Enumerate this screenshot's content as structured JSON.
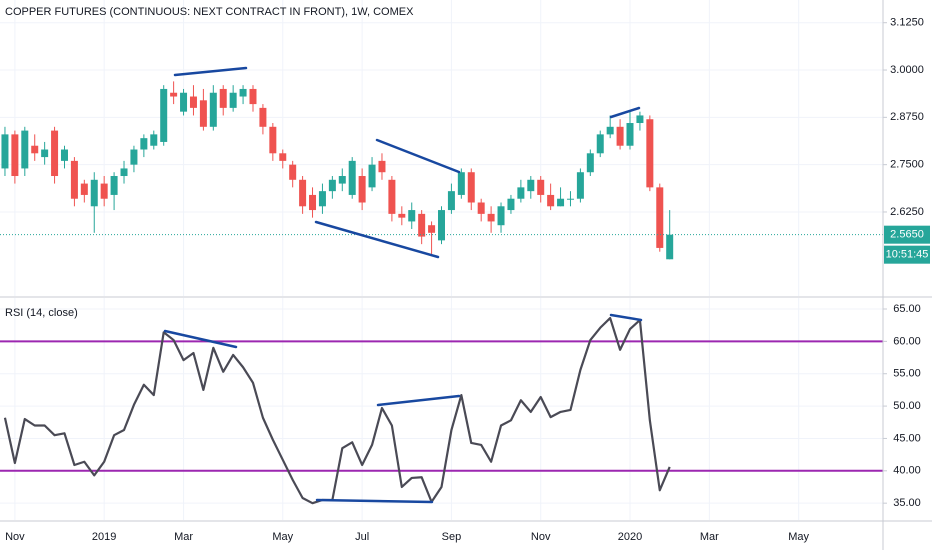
{
  "chart_data": [
    {
      "type": "candlestick",
      "title": "COPPER FUTURES (CONTINUOUS: NEXT CONTRACT IN FRONT), 1W, COMEX",
      "categories": [
        null,
        "Nov",
        null,
        null,
        null,
        null,
        null,
        null,
        null,
        null,
        "2019",
        null,
        null,
        null,
        null,
        null,
        null,
        null,
        "Mar",
        null,
        null,
        null,
        null,
        null,
        null,
        null,
        null,
        null,
        "May",
        null,
        null,
        null,
        null,
        null,
        null,
        null,
        "Jul",
        null,
        null,
        null,
        null,
        null,
        null,
        null,
        null,
        "Sep",
        null,
        null,
        null,
        null,
        null,
        null,
        null,
        null,
        "Nov",
        null,
        null,
        null,
        null,
        null,
        null,
        null,
        null,
        "2020",
        null,
        null,
        null,
        null,
        null,
        null,
        null,
        "Mar",
        null,
        null,
        null,
        null,
        null,
        null,
        null,
        null,
        "May",
        null,
        null,
        null,
        null,
        null,
        null,
        null,
        null
      ],
      "open": [
        2.74,
        2.83,
        2.74,
        2.8,
        2.77,
        2.84,
        2.76,
        2.76,
        2.7,
        2.64,
        2.7,
        2.67,
        2.72,
        2.75,
        2.79,
        2.8,
        2.81,
        2.94,
        2.89,
        2.93,
        2.92,
        2.85,
        2.95,
        2.9,
        2.93,
        2.95,
        2.9,
        2.85,
        2.78,
        2.75,
        2.71,
        2.67,
        2.64,
        2.68,
        2.7,
        2.67,
        2.72,
        2.69,
        2.76,
        2.71,
        2.62,
        2.6,
        2.62,
        2.59,
        2.55,
        2.63,
        2.67,
        2.73,
        2.65,
        2.62,
        2.59,
        2.63,
        2.66,
        2.68,
        2.71,
        2.67,
        2.64,
        2.66,
        2.66,
        2.73,
        2.78,
        2.83,
        2.85,
        2.8,
        2.86,
        2.87,
        2.69,
        2.5,
        null,
        null,
        null,
        null,
        null,
        null,
        null,
        null,
        null,
        null,
        null,
        null,
        null,
        null,
        null,
        null,
        null,
        null,
        null,
        null,
        null
      ],
      "high": [
        2.85,
        2.84,
        2.85,
        2.83,
        2.81,
        2.85,
        2.8,
        2.77,
        2.71,
        2.73,
        2.72,
        2.73,
        2.76,
        2.8,
        2.83,
        2.84,
        2.96,
        2.97,
        2.95,
        2.96,
        2.95,
        2.96,
        2.96,
        2.96,
        2.96,
        2.96,
        2.91,
        2.86,
        2.79,
        2.76,
        2.72,
        2.69,
        2.7,
        2.72,
        2.74,
        2.77,
        2.74,
        2.77,
        2.78,
        2.72,
        2.64,
        2.65,
        2.63,
        2.6,
        2.64,
        2.7,
        2.74,
        2.74,
        2.66,
        2.64,
        2.65,
        2.67,
        2.71,
        2.72,
        2.72,
        2.7,
        2.69,
        2.68,
        2.74,
        2.79,
        2.84,
        2.88,
        2.87,
        2.89,
        2.89,
        2.88,
        2.7,
        2.63,
        null,
        null,
        null,
        null,
        null,
        null,
        null,
        null,
        null,
        null,
        null,
        null,
        null,
        null,
        null,
        null,
        null,
        null,
        null,
        null,
        null
      ],
      "low": [
        2.72,
        2.7,
        2.72,
        2.76,
        2.75,
        2.7,
        2.74,
        2.64,
        2.65,
        2.57,
        2.64,
        2.63,
        2.7,
        2.73,
        2.77,
        2.79,
        2.8,
        2.91,
        2.88,
        2.88,
        2.84,
        2.84,
        2.88,
        2.89,
        2.91,
        2.89,
        2.83,
        2.76,
        2.74,
        2.69,
        2.62,
        2.61,
        2.62,
        2.66,
        2.68,
        2.66,
        2.63,
        2.68,
        2.71,
        2.6,
        2.59,
        2.58,
        2.54,
        2.51,
        2.54,
        2.62,
        2.66,
        2.63,
        2.6,
        2.57,
        2.57,
        2.62,
        2.65,
        2.66,
        2.65,
        2.63,
        2.64,
        2.64,
        2.65,
        2.72,
        2.77,
        2.82,
        2.79,
        2.79,
        2.84,
        2.68,
        2.52,
        2.5,
        null,
        null,
        null,
        null,
        null,
        null,
        null,
        null,
        null,
        null,
        null,
        null,
        null,
        null,
        null,
        null,
        null,
        null,
        null,
        null,
        null
      ],
      "close": [
        2.83,
        2.72,
        2.84,
        2.78,
        2.79,
        2.72,
        2.79,
        2.66,
        2.67,
        2.71,
        2.66,
        2.72,
        2.74,
        2.79,
        2.82,
        2.83,
        2.95,
        2.93,
        2.94,
        2.9,
        2.85,
        2.94,
        2.9,
        2.94,
        2.95,
        2.91,
        2.85,
        2.78,
        2.76,
        2.71,
        2.64,
        2.63,
        2.68,
        2.71,
        2.72,
        2.76,
        2.65,
        2.75,
        2.73,
        2.62,
        2.61,
        2.63,
        2.56,
        2.57,
        2.63,
        2.68,
        2.73,
        2.65,
        2.62,
        2.6,
        2.64,
        2.66,
        2.69,
        2.71,
        2.67,
        2.64,
        2.66,
        2.66,
        2.73,
        2.78,
        2.83,
        2.85,
        2.8,
        2.86,
        2.88,
        2.69,
        2.53,
        2.565,
        null,
        null,
        null,
        null,
        null,
        null,
        null,
        null,
        null,
        null,
        null,
        null,
        null,
        null,
        null,
        null,
        null,
        null,
        null,
        null,
        null
      ],
      "up_color": "#26a69a",
      "down_color": "#ef5350",
      "ylim": [
        2.403,
        3.185
      ],
      "yticks": [
        {
          "value": 2.625,
          "label": "2.6250"
        },
        {
          "value": 2.75,
          "label": "2.7500"
        },
        {
          "value": 2.875,
          "label": "2.8750"
        },
        {
          "value": 3.0,
          "label": "3.0000"
        },
        {
          "value": 3.125,
          "label": "3.1250"
        }
      ],
      "last_price": {
        "value": 2.565,
        "label": "2.5650"
      },
      "countdown": "10:51:45",
      "grid": true
    },
    {
      "type": "line",
      "title": "RSI (14, close)",
      "values": [
        48.2,
        41.2,
        48,
        47,
        47,
        45.5,
        45.8,
        40.9,
        41.4,
        39.3,
        41.4,
        45.5,
        46.3,
        50.2,
        53.3,
        51.7,
        61.4,
        60.2,
        57.1,
        58.2,
        52.5,
        59,
        55.3,
        57.9,
        56,
        53.6,
        48.2,
        44.8,
        41.7,
        38.6,
        35.8,
        35,
        35.5,
        35.5,
        43.5,
        44.4,
        40.9,
        44,
        49.7,
        47,
        37.5,
        38.9,
        39,
        35.2,
        37.5,
        46.3,
        51.7,
        44.3,
        44,
        41.4,
        47,
        47.8,
        50.9,
        49.1,
        51.4,
        48.3,
        49.1,
        49.4,
        55.6,
        60.2,
        62.1,
        63.6,
        58.7,
        61.9,
        63.3,
        47.8,
        37,
        40.6,
        null,
        null,
        null,
        null,
        null,
        null,
        null,
        null,
        null,
        null,
        null,
        null,
        null,
        null,
        null,
        null,
        null,
        null,
        null,
        null,
        null
      ],
      "color": "#4a4a55",
      "levels": [
        60,
        40
      ],
      "level_color": "#9c27b0",
      "ylim": [
        32.4,
        66.7
      ],
      "yticks": [
        {
          "value": 35,
          "label": "35.00"
        },
        {
          "value": 40,
          "label": "40.00"
        },
        {
          "value": 45,
          "label": "45.00"
        },
        {
          "value": 50,
          "label": "50.00"
        },
        {
          "value": 55,
          "label": "55.00"
        },
        {
          "value": 60,
          "label": "60.00"
        },
        {
          "value": 65,
          "label": "65.00"
        }
      ],
      "grid": true
    }
  ]
}
